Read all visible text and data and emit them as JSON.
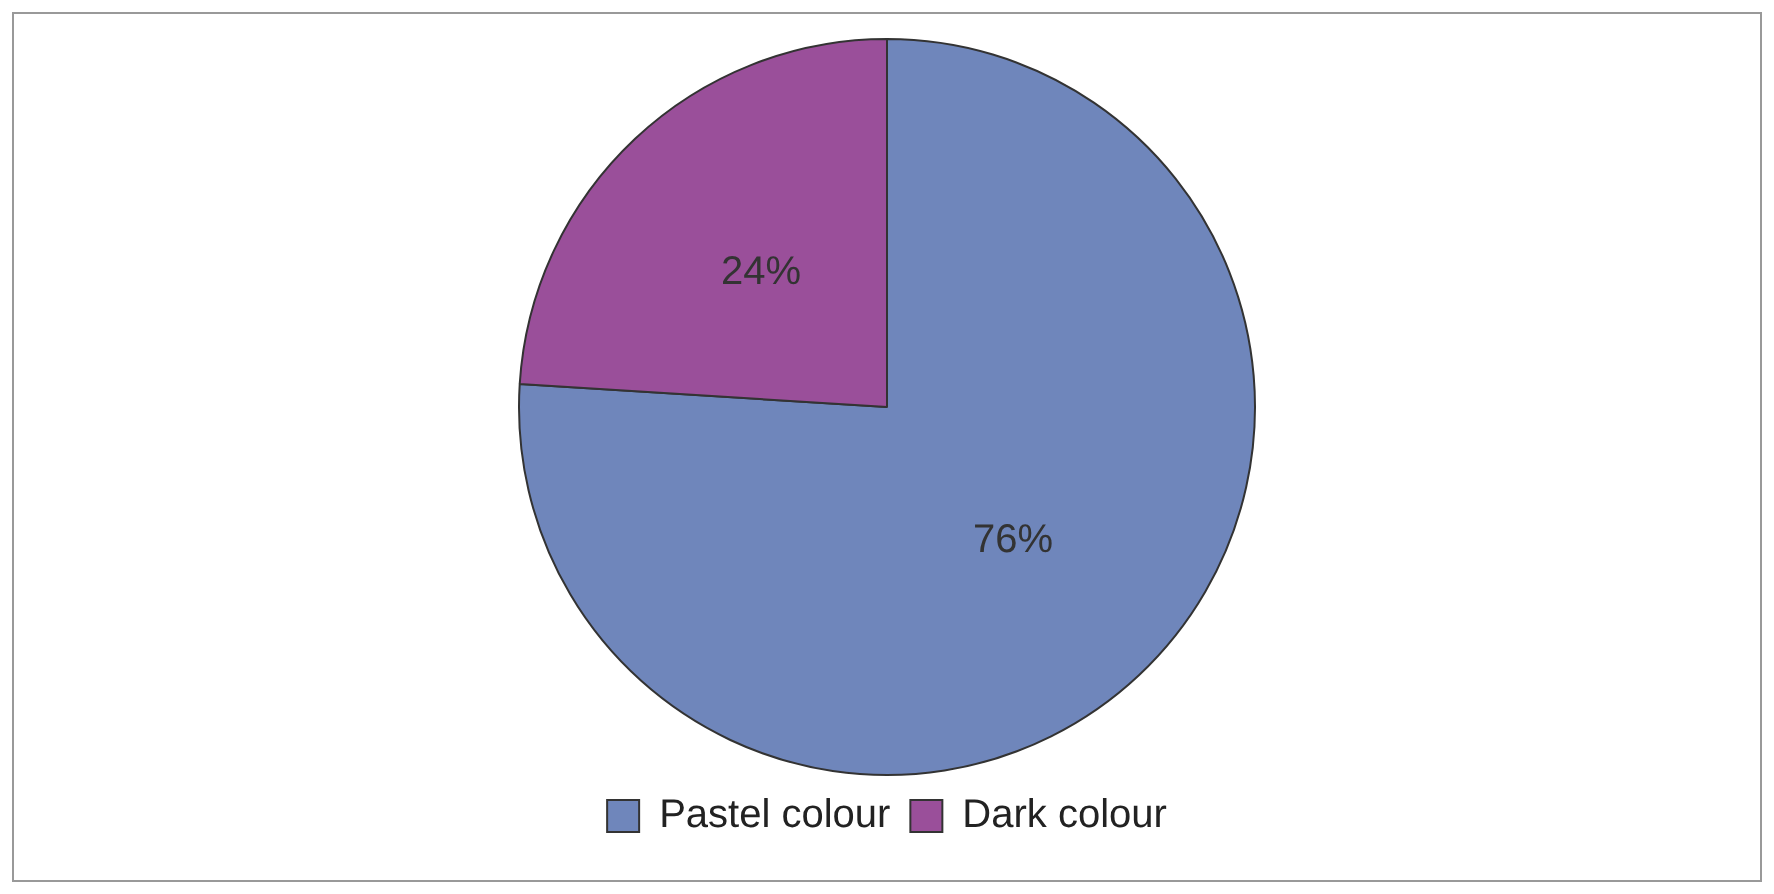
{
  "chart_data": {
    "type": "pie",
    "categories": [
      "Pastel colour",
      "Dark colour"
    ],
    "values": [
      76,
      24
    ],
    "colors": [
      "#6f86bb",
      "#9a4f9a"
    ],
    "value_labels": [
      "76%",
      "24%"
    ],
    "legend": "bottom"
  }
}
